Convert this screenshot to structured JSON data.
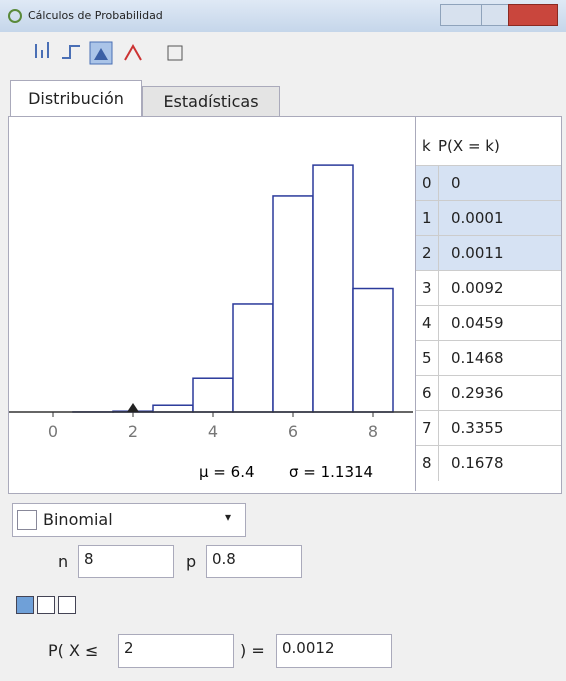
{
  "window": {
    "title": "Cálculos de Probabilidad"
  },
  "tabs": [
    "Distribución",
    "Estadísticas"
  ],
  "chart": {
    "xlim": [
      -1.1,
      9
    ],
    "xticks": [
      0,
      2,
      4,
      6,
      8
    ],
    "ylim": [
      0,
      0.39
    ],
    "bar_color": "#ffffff",
    "bar_stroke": "#2b3a9b",
    "bound": 2
  },
  "stats": {
    "mean": "μ = 6.4",
    "sd": "σ = 1.1314"
  },
  "table": {
    "header": [
      "k",
      "P(X = k)"
    ],
    "rows": [
      [
        0,
        0
      ],
      [
        1,
        0.0001
      ],
      [
        2,
        0.0011
      ],
      [
        3,
        0.0092
      ],
      [
        4,
        0.0459
      ],
      [
        5,
        0.1468
      ],
      [
        6,
        0.2936
      ],
      [
        7,
        0.3355
      ],
      [
        8,
        0.1678
      ]
    ],
    "highlighted": [
      0,
      1,
      2
    ]
  },
  "distribution": "Binomial",
  "params": [
    {
      "name": "n",
      "value": 8
    },
    {
      "name": "p",
      "value": 0.8
    }
  ],
  "result": {
    "prefix": "P( X ≤",
    "bound": "2",
    "suffix": ") =",
    "value": 0.0012
  }
}
